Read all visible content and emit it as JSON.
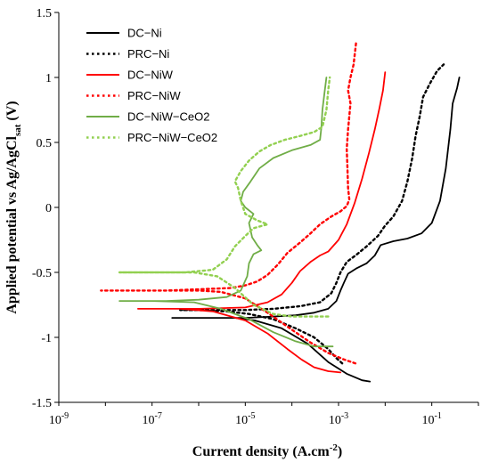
{
  "chart_data": {
    "type": "line",
    "xlabel": "Current density (A.cm",
    "xlabel_sup": "-2",
    "xlabel_end": ")",
    "ylabel": "Applied potential vs Ag/AgCl",
    "ylabel_sub": "sat",
    "ylabel_end": " (V)",
    "x_scale": "log",
    "xlim": [
      1e-09,
      1
    ],
    "ylim": [
      -1.5,
      1.5
    ],
    "x_ticks": [
      {
        "value": 1e-09,
        "base": "10",
        "exp": "-9"
      },
      {
        "value": 1e-07,
        "base": "10",
        "exp": "-7"
      },
      {
        "value": 1e-05,
        "base": "10",
        "exp": "-5"
      },
      {
        "value": 0.001,
        "base": "10",
        "exp": "-3"
      },
      {
        "value": 0.1,
        "base": "10",
        "exp": "-1"
      }
    ],
    "y_ticks": [
      {
        "value": 1.5,
        "label": "1.5"
      },
      {
        "value": 1,
        "label": "1"
      },
      {
        "value": 0.5,
        "label": "0.5"
      },
      {
        "value": 0,
        "label": "0"
      },
      {
        "value": -0.5,
        "label": "-0.5"
      },
      {
        "value": -1,
        "label": "-1"
      },
      {
        "value": -1.5,
        "label": "-1.5"
      }
    ],
    "grid": false,
    "legend_position": "top-left",
    "series": [
      {
        "name": "DC−Ni",
        "color": "#000000",
        "dash": "solid",
        "points": [
          [
            0.0047,
            -1.34
          ],
          [
            0.0032,
            -1.33
          ],
          [
            0.0015,
            -1.28
          ],
          [
            0.0006,
            -1.19
          ],
          [
            0.00022,
            -1.05
          ],
          [
            6e-05,
            -0.93
          ],
          [
            1.6e-05,
            -0.87
          ],
          [
            6e-06,
            -0.85
          ],
          [
            2e-06,
            -0.85
          ],
          [
            6e-07,
            -0.85
          ],
          [
            2.7e-07,
            -0.85
          ],
          [
            2e-06,
            -0.85
          ],
          [
            1e-05,
            -0.85
          ],
          [
            4e-05,
            -0.84
          ],
          [
            0.00012,
            -0.83
          ],
          [
            0.0003,
            -0.81
          ],
          [
            0.0006,
            -0.78
          ],
          [
            0.0009,
            -0.72
          ],
          [
            0.0011,
            -0.64
          ],
          [
            0.0013,
            -0.58
          ],
          [
            0.0016,
            -0.51
          ],
          [
            0.0024,
            -0.47
          ],
          [
            0.004,
            -0.43
          ],
          [
            0.006,
            -0.37
          ],
          [
            0.008,
            -0.29
          ],
          [
            0.015,
            -0.26
          ],
          [
            0.03,
            -0.24
          ],
          [
            0.06,
            -0.2
          ],
          [
            0.1,
            -0.12
          ],
          [
            0.15,
            0.05
          ],
          [
            0.2,
            0.3
          ],
          [
            0.25,
            0.6
          ],
          [
            0.28,
            0.8
          ],
          [
            0.35,
            0.92
          ],
          [
            0.39,
            1.0
          ]
        ]
      },
      {
        "name": "PRC−Ni",
        "color": "#000000",
        "dash": "dotted",
        "points": [
          [
            0.0012,
            -1.2
          ],
          [
            0.0009,
            -1.16
          ],
          [
            0.0006,
            -1.09
          ],
          [
            0.0003,
            -1.0
          ],
          [
            0.00012,
            -0.93
          ],
          [
            4e-05,
            -0.86
          ],
          [
            1.2e-05,
            -0.82
          ],
          [
            4e-06,
            -0.8
          ],
          [
            1e-06,
            -0.79
          ],
          [
            4e-07,
            -0.79
          ],
          [
            2e-06,
            -0.79
          ],
          [
            1e-05,
            -0.79
          ],
          [
            4e-05,
            -0.78
          ],
          [
            0.00015,
            -0.76
          ],
          [
            0.0004,
            -0.73
          ],
          [
            0.0007,
            -0.66
          ],
          [
            0.0009,
            -0.58
          ],
          [
            0.0011,
            -0.5
          ],
          [
            0.0015,
            -0.42
          ],
          [
            0.0025,
            -0.36
          ],
          [
            0.004,
            -0.3
          ],
          [
            0.007,
            -0.22
          ],
          [
            0.01,
            -0.14
          ],
          [
            0.015,
            -0.07
          ],
          [
            0.023,
            0.05
          ],
          [
            0.03,
            0.2
          ],
          [
            0.038,
            0.38
          ],
          [
            0.045,
            0.55
          ],
          [
            0.055,
            0.7
          ],
          [
            0.065,
            0.85
          ],
          [
            0.09,
            0.95
          ],
          [
            0.13,
            1.05
          ],
          [
            0.18,
            1.1
          ]
        ]
      },
      {
        "name": "DC−NiW",
        "color": "#ff0000",
        "dash": "solid",
        "points": [
          [
            0.0011,
            -1.27
          ],
          [
            0.0006,
            -1.26
          ],
          [
            0.0003,
            -1.23
          ],
          [
            0.00016,
            -1.17
          ],
          [
            8e-05,
            -1.09
          ],
          [
            3e-05,
            -0.97
          ],
          [
            1e-05,
            -0.87
          ],
          [
            2e-06,
            -0.8
          ],
          [
            4e-07,
            -0.78
          ],
          [
            5e-08,
            -0.78
          ],
          [
            1e-06,
            -0.78
          ],
          [
            1e-05,
            -0.77
          ],
          [
            3e-05,
            -0.73
          ],
          [
            6e-05,
            -0.67
          ],
          [
            0.0001,
            -0.58
          ],
          [
            0.00015,
            -0.49
          ],
          [
            0.00025,
            -0.42
          ],
          [
            0.0004,
            -0.37
          ],
          [
            0.0006,
            -0.34
          ],
          [
            0.001,
            -0.25
          ],
          [
            0.0015,
            -0.13
          ],
          [
            0.0022,
            0.03
          ],
          [
            0.0032,
            0.22
          ],
          [
            0.0045,
            0.42
          ],
          [
            0.006,
            0.6
          ],
          [
            0.0075,
            0.76
          ],
          [
            0.009,
            0.9
          ],
          [
            0.01,
            1.04
          ]
        ]
      },
      {
        "name": "PRC−NiW",
        "color": "#ff0000",
        "dash": "dotted",
        "points": [
          [
            0.0023,
            -1.2
          ],
          [
            0.0013,
            -1.17
          ],
          [
            0.0006,
            -1.12
          ],
          [
            0.00025,
            -1.04
          ],
          [
            9e-05,
            -0.93
          ],
          [
            3e-05,
            -0.81
          ],
          [
            1e-05,
            -0.7
          ],
          [
            3e-06,
            -0.65
          ],
          [
            1e-06,
            -0.64
          ],
          [
            2e-07,
            -0.64
          ],
          [
            8e-09,
            -0.64
          ],
          [
            2e-07,
            -0.64
          ],
          [
            1e-06,
            -0.63
          ],
          [
            5e-06,
            -0.62
          ],
          [
            1e-05,
            -0.6
          ],
          [
            1.8e-05,
            -0.57
          ],
          [
            3e-05,
            -0.52
          ],
          [
            5e-05,
            -0.44
          ],
          [
            8e-05,
            -0.35
          ],
          [
            0.00015,
            -0.27
          ],
          [
            0.00025,
            -0.2
          ],
          [
            0.0004,
            -0.13
          ],
          [
            0.0007,
            -0.07
          ],
          [
            0.0011,
            -0.03
          ],
          [
            0.0015,
            0.01
          ],
          [
            0.0017,
            0.06
          ],
          [
            0.0016,
            0.15
          ],
          [
            0.00155,
            0.3
          ],
          [
            0.0015,
            0.45
          ],
          [
            0.0016,
            0.6
          ],
          [
            0.0018,
            0.8
          ],
          [
            0.0016,
            0.9
          ],
          [
            0.0018,
            1.0
          ],
          [
            0.0021,
            1.1
          ],
          [
            0.0024,
            1.28
          ]
        ]
      },
      {
        "name": "DC−NiW−CeO2",
        "color": "#70ad47",
        "dash": "solid",
        "points": [
          [
            0.00075,
            -1.07
          ],
          [
            0.0003,
            -1.07
          ],
          [
            0.00012,
            -1.03
          ],
          [
            4e-05,
            -0.96
          ],
          [
            1.2e-05,
            -0.86
          ],
          [
            3e-06,
            -0.78
          ],
          [
            8e-07,
            -0.73
          ],
          [
            1e-07,
            -0.72
          ],
          [
            2e-08,
            -0.72
          ],
          [
            2e-07,
            -0.72
          ],
          [
            1e-06,
            -0.71
          ],
          [
            4e-06,
            -0.69
          ],
          [
            8e-06,
            -0.64
          ],
          [
            1.1e-05,
            -0.53
          ],
          [
            1.2e-05,
            -0.43
          ],
          [
            1.5e-05,
            -0.36
          ],
          [
            2.2e-05,
            -0.33
          ],
          [
            1.8e-05,
            -0.29
          ],
          [
            1.4e-05,
            -0.23
          ],
          [
            1.2e-05,
            -0.12
          ],
          [
            1.5e-05,
            -0.05
          ],
          [
            1e-05,
            0.0
          ],
          [
            8e-06,
            0.05
          ],
          [
            9e-06,
            0.12
          ],
          [
            1.3e-05,
            0.2
          ],
          [
            2e-05,
            0.3
          ],
          [
            4e-05,
            0.38
          ],
          [
            0.0001,
            0.44
          ],
          [
            0.00025,
            0.48
          ],
          [
            0.0004,
            0.52
          ],
          [
            0.00043,
            0.62
          ],
          [
            0.00045,
            0.75
          ],
          [
            0.0005,
            0.88
          ],
          [
            0.00055,
            1.0
          ]
        ]
      },
      {
        "name": "PRC−NiW−CeO2",
        "color": "#92d050",
        "dash": "dotted",
        "points": [
          [
            0.0006,
            -0.84
          ],
          [
            0.00025,
            -0.84
          ],
          [
            0.0001,
            -0.84
          ],
          [
            4e-05,
            -0.82
          ],
          [
            1.5e-05,
            -0.75
          ],
          [
            6e-06,
            -0.62
          ],
          [
            2.5e-06,
            -0.53
          ],
          [
            8e-07,
            -0.5
          ],
          [
            1e-07,
            -0.5
          ],
          [
            2e-08,
            -0.5
          ],
          [
            1e-07,
            -0.5
          ],
          [
            5e-07,
            -0.5
          ],
          [
            2e-06,
            -0.48
          ],
          [
            4e-06,
            -0.4
          ],
          [
            6e-06,
            -0.3
          ],
          [
            1e-05,
            -0.22
          ],
          [
            1.5e-05,
            -0.16
          ],
          [
            3e-05,
            -0.13
          ],
          [
            1.8e-05,
            -0.1
          ],
          [
            1e-05,
            -0.05
          ],
          [
            8e-06,
            0.05
          ],
          [
            7e-06,
            0.15
          ],
          [
            6e-06,
            0.2
          ],
          [
            8e-06,
            0.28
          ],
          [
            1.2e-05,
            0.36
          ],
          [
            2e-05,
            0.43
          ],
          [
            3.5e-05,
            0.48
          ],
          [
            7e-05,
            0.52
          ],
          [
            0.00015,
            0.55
          ],
          [
            0.0003,
            0.58
          ],
          [
            0.00045,
            0.62
          ],
          [
            0.00055,
            0.75
          ],
          [
            0.0006,
            0.9
          ],
          [
            0.00065,
            1.0
          ]
        ]
      }
    ]
  }
}
